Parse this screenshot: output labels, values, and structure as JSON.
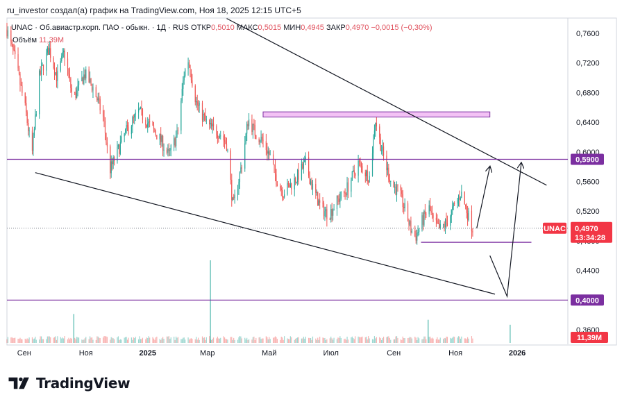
{
  "header": {
    "title": "ru_investor создал(а) график на TradingView.com, Ноя 18, 2025 12:15 UTC+5"
  },
  "legend": {
    "symbol": "UNAC · Об.авиастр.корп. ПАО - обыкн. · 1Д · RUS",
    "open_label": "ОТКР",
    "open": "0,5010",
    "high_label": "МАКС",
    "high": "0,5015",
    "low_label": "МИН",
    "low": "0,4945",
    "close_label": "ЗАКР",
    "close": "0,4970",
    "change": "−0,0015 (−0,30%)",
    "volume_label": "Объём",
    "volume": "11,39M"
  },
  "brand": {
    "name": "TradingView",
    "logo_icon": "tradingview-logo-icon"
  },
  "chart_data": {
    "type": "candlestick",
    "symbol": "UNAC",
    "timeframe": "1Д",
    "ylim": [
      0.34,
      0.78
    ],
    "y_ticks": [
      "0,7600",
      "0,7200",
      "0,6800",
      "0,6400",
      "0,6000",
      "0,5600",
      "0,5200",
      "0,4800",
      "0,4400",
      "0,3600"
    ],
    "x_ticks": [
      {
        "label": "Сен",
        "date": "2024-09-01"
      },
      {
        "label": "Ноя",
        "date": "2024-11-01"
      },
      {
        "label": "2025",
        "date": "2025-01-01"
      },
      {
        "label": "Мар",
        "date": "2025-03-01"
      },
      {
        "label": "Май",
        "date": "2025-05-01"
      },
      {
        "label": "Июл",
        "date": "2025-07-01"
      },
      {
        "label": "Сен",
        "date": "2025-09-01"
      },
      {
        "label": "Ноя",
        "date": "2025-11-01"
      },
      {
        "label": "2026",
        "date": "2026-01-01"
      }
    ],
    "xlim": [
      "2024-08-15",
      "2026-02-20"
    ],
    "last_date": "2025-11-18",
    "price_path": [
      [
        "2024-08-15",
        0.765
      ],
      [
        "2024-08-25",
        0.72
      ],
      [
        "2024-09-05",
        0.655
      ],
      [
        "2024-09-12",
        0.595
      ],
      [
        "2024-09-20",
        0.7
      ],
      [
        "2024-10-01",
        0.74
      ],
      [
        "2024-10-10",
        0.7
      ],
      [
        "2024-10-18",
        0.735
      ],
      [
        "2024-10-28",
        0.67
      ],
      [
        "2024-11-10",
        0.705
      ],
      [
        "2024-11-20",
        0.685
      ],
      [
        "2024-12-01",
        0.645
      ],
      [
        "2024-12-08",
        0.575
      ],
      [
        "2024-12-15",
        0.595
      ],
      [
        "2024-12-25",
        0.625
      ],
      [
        "2025-01-10",
        0.655
      ],
      [
        "2025-01-22",
        0.635
      ],
      [
        "2025-02-01",
        0.62
      ],
      [
        "2025-02-12",
        0.595
      ],
      [
        "2025-02-22",
        0.625
      ],
      [
        "2025-03-01",
        0.705
      ],
      [
        "2025-03-06",
        0.725
      ],
      [
        "2025-03-15",
        0.665
      ],
      [
        "2025-03-28",
        0.635
      ],
      [
        "2025-04-10",
        0.625
      ],
      [
        "2025-04-18",
        0.61
      ],
      [
        "2025-04-25",
        0.525
      ],
      [
        "2025-05-05",
        0.585
      ],
      [
        "2025-05-12",
        0.645
      ],
      [
        "2025-05-20",
        0.625
      ],
      [
        "2025-05-28",
        0.615
      ],
      [
        "2025-06-05",
        0.595
      ],
      [
        "2025-06-12",
        0.565
      ],
      [
        "2025-06-20",
        0.545
      ],
      [
        "2025-06-28",
        0.555
      ],
      [
        "2025-07-05",
        0.565
      ],
      [
        "2025-07-15",
        0.585
      ],
      [
        "2025-07-22",
        0.555
      ],
      [
        "2025-08-01",
        0.525
      ],
      [
        "2025-08-10",
        0.515
      ],
      [
        "2025-08-20",
        0.535
      ],
      [
        "2025-08-28",
        0.545
      ],
      [
        "2025-09-05",
        0.565
      ],
      [
        "2025-09-12",
        0.585
      ],
      [
        "2025-09-18",
        0.575
      ],
      [
        "2025-09-25",
        0.565
      ],
      [
        "2025-10-01",
        0.645
      ],
      [
        "2025-10-06",
        0.615
      ],
      [
        "2025-10-12",
        0.585
      ],
      [
        "2025-10-20",
        0.555
      ],
      [
        "2025-10-28",
        0.545
      ],
      [
        "2025-11-05",
        0.515
      ],
      [
        "2025-11-10",
        0.495
      ],
      [
        "2025-11-15",
        0.485
      ],
      [
        "2025-11-22",
        0.505
      ],
      [
        "2025-11-30",
        0.525
      ],
      [
        "2025-12-05",
        0.505
      ],
      [
        "2025-12-12",
        0.495
      ],
      [
        "2025-12-20",
        0.505
      ],
      [
        "2026-01-05",
        0.545
      ],
      [
        "2026-01-10",
        0.525
      ],
      [
        "2026-01-18",
        0.497
      ]
    ],
    "volume_ylim": [
      0,
      100
    ],
    "volume_spikes": [
      {
        "date": "2025-03-04",
        "value": 100
      },
      {
        "date": "2024-10-20",
        "value": 35
      },
      {
        "date": "2025-10-05",
        "value": 28
      },
      {
        "date": "2025-12-25",
        "value": 22
      }
    ],
    "last_price": {
      "label": "UNAC",
      "value": 0.497,
      "text": "0,4970",
      "countdown": "13:34:28",
      "color": "#f23645"
    },
    "levels": [
      {
        "value": 0.59,
        "text": "0,5900",
        "color": "#7b2fa0"
      },
      {
        "value": 0.4,
        "text": "0,4000",
        "color": "#7b2fa0"
      }
    ],
    "volume_tag": {
      "text": "11,39M",
      "color": "#f23645"
    },
    "drawings": {
      "upper_trendline": [
        [
          "2025-03-20",
          0.78
        ],
        [
          "2026-01-30",
          0.555
        ]
      ],
      "lower_trendline": [
        [
          "2024-09-12",
          0.572
        ],
        [
          "2025-12-10",
          0.408
        ]
      ],
      "resistance_box": {
        "from": "2025-04-25",
        "to": "2025-12-05",
        "top": 0.654,
        "bottom": 0.647,
        "color": "#f3c2f5"
      },
      "support_line": {
        "from": "2025-09-28",
        "to": "2026-01-15",
        "value": 0.478,
        "color": "#7b2fa0"
      },
      "path_arrow_1": [
        [
          "2025-11-22",
          0.497
        ],
        [
          "2025-12-05",
          0.58
        ]
      ],
      "path_arrow_2": [
        [
          "2025-12-05",
          0.46
        ],
        [
          "2025-12-22",
          0.405
        ],
        [
          "2026-01-05",
          0.585
        ]
      ]
    },
    "colors": {
      "up": "#26a69a",
      "down": "#ef5350",
      "trend": "#131722",
      "level": "#7b2fa0"
    }
  }
}
